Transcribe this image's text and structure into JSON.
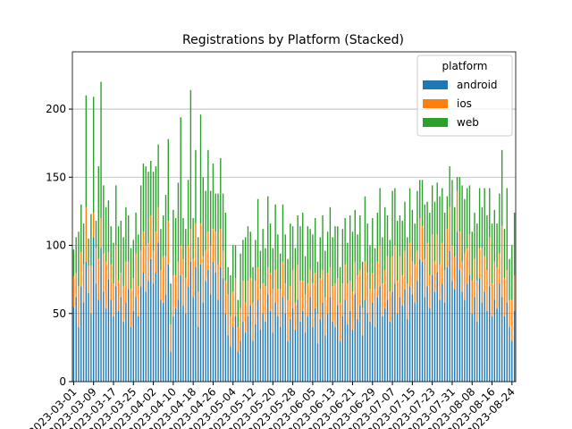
{
  "chart_data": {
    "type": "bar",
    "stacked": true,
    "title": "Registrations by Platform (Stacked)",
    "legend_title": "platform",
    "legend": "upper right",
    "grid": "y",
    "ylim": [
      0,
      242
    ],
    "yticks": [
      0,
      50,
      100,
      150,
      200
    ],
    "categories": [
      "2023-03-01",
      null,
      null,
      null,
      null,
      null,
      null,
      null,
      "2023-03-09",
      null,
      null,
      null,
      null,
      null,
      null,
      null,
      "2023-03-17",
      null,
      null,
      null,
      null,
      null,
      null,
      null,
      "2023-03-25",
      null,
      null,
      null,
      null,
      null,
      null,
      null,
      "2023-04-02",
      null,
      null,
      null,
      null,
      null,
      null,
      null,
      "2023-04-10",
      null,
      null,
      null,
      null,
      null,
      null,
      null,
      "2023-04-18",
      null,
      null,
      null,
      null,
      null,
      null,
      null,
      "2023-04-26",
      null,
      null,
      null,
      null,
      null,
      null,
      null,
      "2023-05-04",
      null,
      null,
      null,
      null,
      null,
      null,
      null,
      "2023-05-12",
      null,
      null,
      null,
      null,
      null,
      null,
      null,
      "2023-05-20",
      null,
      null,
      null,
      null,
      null,
      null,
      null,
      "2023-05-28",
      null,
      null,
      null,
      null,
      null,
      null,
      null,
      "2023-06-05",
      null,
      null,
      null,
      null,
      null,
      null,
      null,
      "2023-06-13",
      null,
      null,
      null,
      null,
      null,
      null,
      null,
      "2023-06-21",
      null,
      null,
      null,
      null,
      null,
      null,
      null,
      "2023-06-29",
      null,
      null,
      null,
      null,
      null,
      null,
      null,
      "2023-07-07",
      null,
      null,
      null,
      null,
      null,
      null,
      null,
      "2023-07-15",
      null,
      null,
      null,
      null,
      null,
      null,
      null,
      "2023-07-23",
      null,
      null,
      null,
      null,
      null,
      null,
      null,
      "2023-07-31",
      null,
      null,
      null,
      null,
      null,
      null,
      null,
      "2023-08-08",
      null,
      null,
      null,
      null,
      null,
      null,
      null,
      "2023-08-16",
      null,
      null,
      null,
      null,
      null,
      null,
      null,
      "2023-08-24",
      null
    ],
    "series": [
      {
        "name": "android",
        "color": "#1f77b4",
        "values": [
          55,
          62,
          40,
          70,
          58,
          88,
          65,
          50,
          106,
          72,
          60,
          98,
          66,
          54,
          75,
          60,
          48,
          70,
          52,
          62,
          44,
          58,
          68,
          40,
          52,
          62,
          48,
          70,
          80,
          66,
          74,
          90,
          72,
          80,
          102,
          60,
          58,
          64,
          86,
          22,
          48,
          54,
          60,
          78,
          56,
          50,
          70,
          88,
          62,
          84,
          40,
          86,
          58,
          74,
          82,
          64,
          88,
          80,
          60,
          84,
          76,
          50,
          34,
          26,
          40,
          48,
          22,
          30,
          44,
          36,
          48,
          56,
          30,
          42,
          60,
          38,
          50,
          44,
          64,
          52,
          36,
          58,
          48,
          40,
          62,
          50,
          30,
          46,
          54,
          38,
          60,
          44,
          52,
          36,
          48,
          62,
          40,
          54,
          28,
          46,
          58,
          34,
          50,
          62,
          44,
          40,
          56,
          30,
          48,
          60,
          42,
          52,
          38,
          64,
          46,
          56,
          34,
          60,
          50,
          44,
          58,
          40,
          62,
          70,
          48,
          54,
          60,
          44,
          66,
          72,
          50,
          62,
          56,
          68,
          46,
          70,
          64,
          58,
          74,
          90,
          88,
          62,
          70,
          54,
          78,
          66,
          80,
          60,
          72,
          58,
          84,
          96,
          74,
          68,
          110,
          82,
          66,
          60,
          72,
          78,
          50,
          62,
          44,
          76,
          58,
          66,
          52,
          70,
          48,
          60,
          54,
          72,
          62,
          48,
          58,
          40,
          30,
          52
        ]
      },
      {
        "name": "ios",
        "color": "#ff7f0e",
        "values": [
          22,
          18,
          30,
          25,
          28,
          40,
          20,
          35,
          18,
          26,
          30,
          22,
          28,
          34,
          20,
          26,
          24,
          30,
          22,
          18,
          26,
          30,
          20,
          28,
          24,
          32,
          22,
          26,
          30,
          34,
          28,
          32,
          24,
          30,
          26,
          22,
          34,
          28,
          32,
          20,
          30,
          24,
          28,
          22,
          34,
          26,
          30,
          24,
          28,
          32,
          26,
          30,
          34,
          22,
          28,
          36,
          24,
          30,
          26,
          28,
          20,
          24,
          30,
          22,
          26,
          28,
          18,
          24,
          30,
          22,
          26,
          20,
          28,
          32,
          24,
          30,
          22,
          26,
          20,
          28,
          32,
          24,
          20,
          28,
          26,
          22,
          30,
          24,
          28,
          20,
          26,
          30,
          22,
          28,
          24,
          20,
          32,
          26,
          22,
          30,
          24,
          28,
          30,
          22,
          26,
          32,
          20,
          28,
          24,
          26,
          30,
          22,
          28,
          24,
          32,
          26,
          20,
          28,
          30,
          24,
          22,
          28,
          26,
          30,
          24,
          28,
          32,
          22,
          26,
          28,
          24,
          30,
          22,
          28,
          26,
          32,
          24,
          28,
          22,
          30,
          26,
          28,
          32,
          24,
          30,
          22,
          28,
          26,
          30,
          24,
          28,
          32,
          26,
          24,
          30,
          28,
          22,
          34,
          26,
          30,
          24,
          28,
          30,
          22,
          40,
          26,
          30,
          36,
          24,
          28,
          30,
          22,
          52,
          28,
          24,
          20,
          30,
          26
        ]
      },
      {
        "name": "web",
        "color": "#2ca02c",
        "values": [
          20,
          26,
          40,
          35,
          30,
          82,
          20,
          38,
          85,
          20,
          68,
          100,
          50,
          40,
          38,
          28,
          30,
          44,
          40,
          38,
          36,
          40,
          34,
          30,
          28,
          30,
          38,
          48,
          50,
          58,
          52,
          40,
          58,
          48,
          46,
          30,
          30,
          45,
          60,
          30,
          48,
          42,
          58,
          94,
          30,
          36,
          48,
          102,
          30,
          54,
          40,
          80,
          58,
          44,
          60,
          40,
          48,
          28,
          52,
          52,
          42,
          50,
          20,
          30,
          34,
          24,
          20,
          40,
          30,
          48,
          40,
          34,
          26,
          30,
          50,
          28,
          40,
          28,
          52,
          36,
          30,
          48,
          40,
          26,
          42,
          36,
          30,
          46,
          32,
          40,
          36,
          40,
          50,
          28,
          42,
          30,
          36,
          40,
          38,
          30,
          40,
          34,
          30,
          44,
          36,
          42,
          38,
          26,
          40,
          34,
          30,
          48,
          44,
          38,
          30,
          40,
          34,
          48,
          36,
          32,
          40,
          30,
          36,
          42,
          34,
          46,
          30,
          38,
          48,
          42,
          44,
          30,
          40,
          36,
          34,
          40,
          38,
          30,
          44,
          28,
          34,
          40,
          30,
          46,
          36,
          44,
          38,
          50,
          40,
          42,
          24,
          30,
          48,
          36,
          10,
          40,
          56,
          40,
          44,
          36,
          36,
          34,
          42,
          44,
          30,
          50,
          40,
          36,
          44,
          38,
          32,
          44,
          56,
          36,
          60,
          30,
          40,
          46
        ]
      }
    ]
  }
}
